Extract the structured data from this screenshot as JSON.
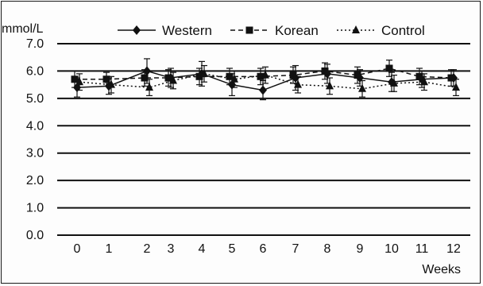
{
  "chart_data": {
    "type": "line",
    "ylabel": "mmol/L",
    "xlabel": "Weeks",
    "ylim": [
      0,
      7
    ],
    "yticks": [
      "0.0",
      "1.0",
      "2.0",
      "3.0",
      "4.0",
      "5.0",
      "6.0",
      "7.0"
    ],
    "x": [
      0,
      1,
      2,
      3,
      4,
      5,
      6,
      7,
      8,
      9,
      10,
      11,
      12
    ],
    "grid": "horizontal",
    "legend_position": "top",
    "series": [
      {
        "name": "Western",
        "marker": "diamond",
        "line": "solid",
        "values": [
          5.4,
          5.45,
          6.0,
          5.75,
          5.9,
          5.5,
          5.3,
          5.75,
          5.9,
          5.75,
          5.6,
          5.7,
          5.75
        ],
        "error": [
          0.35,
          0.3,
          0.45,
          0.35,
          0.45,
          0.4,
          0.35,
          0.45,
          0.35,
          0.3,
          0.35,
          0.3,
          0.3
        ]
      },
      {
        "name": "Korean",
        "marker": "square",
        "line": "dashed",
        "values": [
          5.7,
          5.7,
          5.75,
          5.75,
          5.8,
          5.8,
          5.8,
          5.85,
          6.0,
          5.85,
          6.1,
          5.8,
          5.75
        ],
        "error": [
          0.3,
          0.25,
          0.3,
          0.3,
          0.3,
          0.3,
          0.3,
          0.3,
          0.3,
          0.3,
          0.3,
          0.3,
          0.3
        ]
      },
      {
        "name": "Control",
        "marker": "triangle",
        "line": "dotted",
        "values": [
          5.6,
          5.5,
          5.4,
          5.65,
          5.9,
          5.7,
          5.85,
          5.5,
          5.45,
          5.35,
          5.55,
          5.6,
          5.4
        ],
        "error": [
          0.3,
          0.3,
          0.3,
          0.3,
          0.3,
          0.3,
          0.3,
          0.3,
          0.3,
          0.3,
          0.3,
          0.3,
          0.3
        ]
      }
    ]
  }
}
